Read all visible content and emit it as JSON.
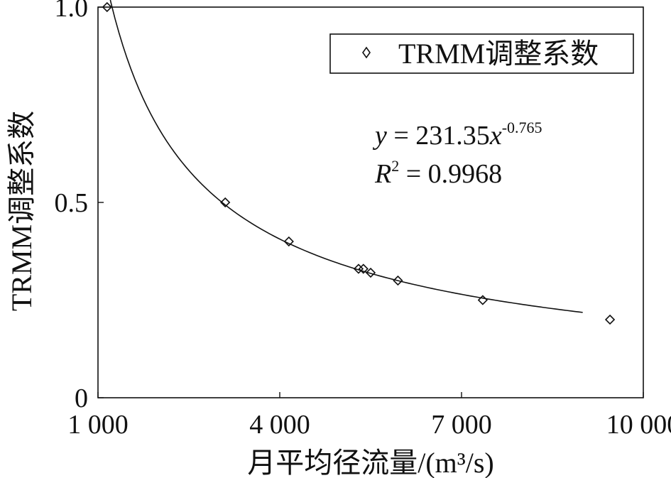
{
  "chart_data": {
    "type": "scatter",
    "xlabel": "月平均径流量/(m³/s)",
    "ylabel": "TRMM调整系数",
    "xlim": [
      1000,
      10000
    ],
    "ylim": [
      0,
      1.0
    ],
    "x_ticks": [
      1000,
      4000,
      7000,
      10000
    ],
    "x_tick_labels": [
      "1 000",
      "4 000",
      "7 000",
      "10 000"
    ],
    "y_ticks": [
      0,
      0.5,
      1.0
    ],
    "y_tick_labels": [
      "0",
      "0.5",
      "1.0"
    ],
    "grid": false,
    "legend_position": "top-right",
    "series": [
      {
        "name": "TRMM调整系数",
        "marker": "diamond",
        "points": [
          {
            "x": 1150,
            "y": 1.0
          },
          {
            "x": 3100,
            "y": 0.5
          },
          {
            "x": 4150,
            "y": 0.4
          },
          {
            "x": 5300,
            "y": 0.33
          },
          {
            "x": 5380,
            "y": 0.33
          },
          {
            "x": 5500,
            "y": 0.32
          },
          {
            "x": 5950,
            "y": 0.3
          },
          {
            "x": 7350,
            "y": 0.25
          },
          {
            "x": 9450,
            "y": 0.2
          }
        ]
      }
    ],
    "trendline": {
      "type": "power",
      "coefficient": 231.35,
      "exponent": -0.765,
      "x_range": [
        1150,
        9000
      ]
    },
    "annotations": {
      "equation_y": "y",
      "equation_eq": " = 231.35",
      "equation_x": "x",
      "equation_exp": "-0.765",
      "r2_r": "R",
      "r2_sup": "2",
      "r2_value": " = 0.9968"
    }
  },
  "colors": {
    "ink": "#111111",
    "background": "#ffffff"
  }
}
